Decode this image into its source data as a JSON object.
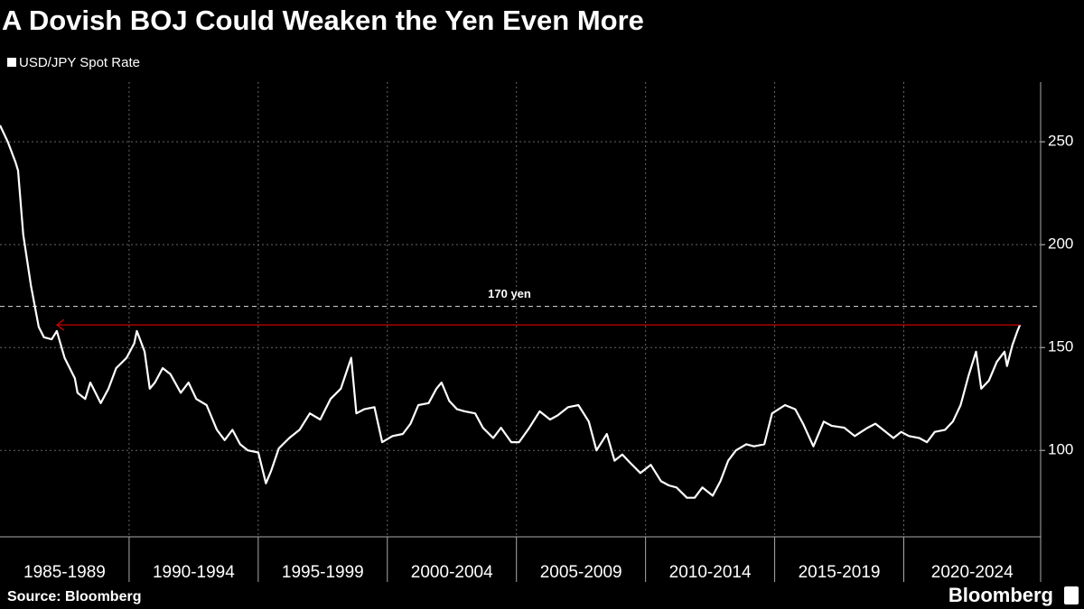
{
  "chart_data": {
    "type": "line",
    "title": "A Dovish BOJ Could Weaken the Yen Even More",
    "source": "Source: Bloomberg",
    "brand": "Bloomberg",
    "x": [
      1985.0,
      1985.3,
      1985.6,
      1985.7,
      1985.9,
      1986.2,
      1986.5,
      1986.7,
      1987.0,
      1987.2,
      1987.5,
      1987.9,
      1988.0,
      1988.3,
      1988.5,
      1988.9,
      1989.2,
      1989.5,
      1989.9,
      1990.2,
      1990.3,
      1990.6,
      1990.8,
      1991.0,
      1991.3,
      1991.6,
      1992.0,
      1992.3,
      1992.6,
      1993.0,
      1993.4,
      1993.7,
      1994.0,
      1994.3,
      1994.6,
      1995.0,
      1995.3,
      1995.5,
      1995.8,
      1996.2,
      1996.6,
      1997.0,
      1997.4,
      1997.8,
      1998.2,
      1998.6,
      1998.8,
      1999.1,
      1999.5,
      1999.8,
      2000.2,
      2000.6,
      2000.9,
      2001.2,
      2001.6,
      2001.9,
      2002.1,
      2002.4,
      2002.7,
      2003.0,
      2003.4,
      2003.7,
      2004.1,
      2004.4,
      2004.8,
      2005.1,
      2005.5,
      2005.9,
      2006.3,
      2006.6,
      2007.0,
      2007.4,
      2007.8,
      2008.1,
      2008.5,
      2008.8,
      2009.1,
      2009.4,
      2009.8,
      2010.2,
      2010.6,
      2010.9,
      2011.2,
      2011.6,
      2011.9,
      2012.2,
      2012.6,
      2012.9,
      2013.2,
      2013.5,
      2013.9,
      2014.2,
      2014.6,
      2014.9,
      2015.4,
      2015.8,
      2016.1,
      2016.5,
      2016.9,
      2017.2,
      2017.7,
      2018.1,
      2018.6,
      2018.9,
      2019.2,
      2019.6,
      2019.9,
      2020.2,
      2020.6,
      2020.9,
      2021.2,
      2021.6,
      2021.9,
      2022.2,
      2022.5,
      2022.8,
      2023.0,
      2023.3,
      2023.6,
      2023.9,
      2024.0,
      2024.2,
      2024.4,
      2024.5
    ],
    "series": [
      {
        "name": "USD/JPY Spot Rate",
        "color": "#ffffff",
        "values": [
          258,
          250,
          240,
          236,
          205,
          180,
          160,
          155,
          154,
          158,
          145,
          135,
          128,
          125,
          133,
          123,
          130,
          140,
          145,
          152,
          158,
          148,
          130,
          133,
          140,
          137,
          128,
          133,
          125,
          122,
          110,
          105,
          110,
          103,
          100,
          99,
          84,
          90,
          101,
          106,
          110,
          118,
          115,
          125,
          130,
          145,
          118,
          120,
          121,
          104,
          107,
          108,
          113,
          122,
          123,
          130,
          133,
          124,
          120,
          119,
          118,
          111,
          106,
          111,
          104,
          104,
          111,
          119,
          115,
          117,
          121,
          122,
          114,
          100,
          108,
          95,
          98,
          94,
          89,
          93,
          85,
          83,
          82,
          77,
          77,
          82,
          78,
          85,
          95,
          100,
          103,
          102,
          103,
          118,
          122,
          120,
          113,
          102,
          114,
          112,
          111,
          107,
          111,
          113,
          110,
          106,
          109,
          107,
          106,
          104,
          109,
          110,
          114,
          122,
          136,
          148,
          130,
          134,
          143,
          148,
          141,
          151,
          158,
          161
        ]
      }
    ],
    "xlim": [
      1985,
      2025.3
    ],
    "xticks": [
      {
        "value": 1985,
        "label": "1985-1989"
      },
      {
        "value": 1990,
        "label": "1990-1994"
      },
      {
        "value": 1995,
        "label": "1995-1999"
      },
      {
        "value": 2000,
        "label": "2000-2004"
      },
      {
        "value": 2005,
        "label": "2005-2009"
      },
      {
        "value": 2010,
        "label": "2010-2014"
      },
      {
        "value": 2015,
        "label": "2015-2019"
      },
      {
        "value": 2020,
        "label": "2020-2024"
      }
    ],
    "ylim": [
      58,
      279
    ],
    "yticks": [
      100,
      150,
      200,
      250
    ],
    "grid": true,
    "reference_line": {
      "value": 170,
      "label": "170 yen"
    },
    "arrow": {
      "y": 161,
      "x_start": 2024.5,
      "x_end": 1987.2,
      "color": "#cc0000"
    }
  }
}
